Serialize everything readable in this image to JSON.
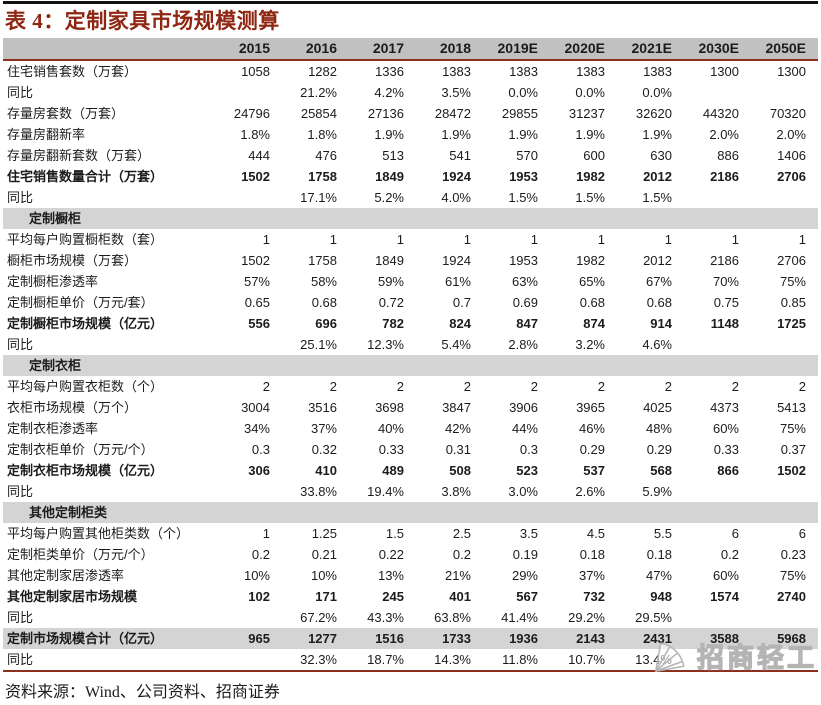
{
  "title": "表 4：定制家具市场规模测算",
  "colors": {
    "accent_maroon": "#8E2612",
    "rule_maroon": "#8E2F1E",
    "top_rule_black": "#111111",
    "header_bg": "#C1C1C1",
    "band_bg": "#D4D4D4",
    "watermark_gray": "#B4B4B4"
  },
  "table": {
    "columns": [
      "2015",
      "2016",
      "2017",
      "2018",
      "2019E",
      "2020E",
      "2021E",
      "2030E",
      "2050E"
    ],
    "rows": [
      {
        "label": "住宅销售套数（万套）",
        "style": "normal",
        "values": [
          "1058",
          "1282",
          "1336",
          "1383",
          "1383",
          "1383",
          "1383",
          "1300",
          "1300"
        ]
      },
      {
        "label": "同比",
        "style": "normal",
        "values": [
          "",
          "21.2%",
          "4.2%",
          "3.5%",
          "0.0%",
          "0.0%",
          "0.0%",
          "",
          ""
        ]
      },
      {
        "label": "存量房套数（万套）",
        "style": "normal",
        "values": [
          "24796",
          "25854",
          "27136",
          "28472",
          "29855",
          "31237",
          "32620",
          "44320",
          "70320"
        ]
      },
      {
        "label": "存量房翻新率",
        "style": "normal",
        "values": [
          "1.8%",
          "1.8%",
          "1.9%",
          "1.9%",
          "1.9%",
          "1.9%",
          "1.9%",
          "2.0%",
          "2.0%"
        ]
      },
      {
        "label": "存量房翻新套数（万套）",
        "style": "normal",
        "values": [
          "444",
          "476",
          "513",
          "541",
          "570",
          "600",
          "630",
          "886",
          "1406"
        ]
      },
      {
        "label": "住宅销售数量合计（万套）",
        "style": "bold",
        "values": [
          "1502",
          "1758",
          "1849",
          "1924",
          "1953",
          "1982",
          "2012",
          "2186",
          "2706"
        ]
      },
      {
        "label": "同比",
        "style": "normal",
        "values": [
          "",
          "17.1%",
          "5.2%",
          "4.0%",
          "1.5%",
          "1.5%",
          "1.5%",
          "",
          ""
        ]
      },
      {
        "label": "定制橱柜",
        "style": "section",
        "values": [
          "",
          "",
          "",
          "",
          "",
          "",
          "",
          "",
          ""
        ]
      },
      {
        "label": "平均每户购置橱柜数（套）",
        "style": "normal",
        "values": [
          "1",
          "1",
          "1",
          "1",
          "1",
          "1",
          "1",
          "1",
          "1"
        ]
      },
      {
        "label": "橱柜市场规模（万套）",
        "style": "normal",
        "values": [
          "1502",
          "1758",
          "1849",
          "1924",
          "1953",
          "1982",
          "2012",
          "2186",
          "2706"
        ]
      },
      {
        "label": "定制橱柜渗透率",
        "style": "normal",
        "values": [
          "57%",
          "58%",
          "59%",
          "61%",
          "63%",
          "65%",
          "67%",
          "70%",
          "75%"
        ]
      },
      {
        "label": "定制橱柜单价（万元/套）",
        "style": "normal",
        "values": [
          "0.65",
          "0.68",
          "0.72",
          "0.7",
          "0.69",
          "0.68",
          "0.68",
          "0.75",
          "0.85"
        ]
      },
      {
        "label": "定制橱柜市场规模（亿元）",
        "style": "bold",
        "values": [
          "556",
          "696",
          "782",
          "824",
          "847",
          "874",
          "914",
          "1148",
          "1725"
        ]
      },
      {
        "label": "同比",
        "style": "normal",
        "values": [
          "",
          "25.1%",
          "12.3%",
          "5.4%",
          "2.8%",
          "3.2%",
          "4.6%",
          "",
          ""
        ]
      },
      {
        "label": "定制衣柜",
        "style": "section",
        "values": [
          "",
          "",
          "",
          "",
          "",
          "",
          "",
          "",
          ""
        ]
      },
      {
        "label": "平均每户购置衣柜数（个）",
        "style": "normal",
        "values": [
          "2",
          "2",
          "2",
          "2",
          "2",
          "2",
          "2",
          "2",
          "2"
        ]
      },
      {
        "label": "衣柜市场规模（万个）",
        "style": "normal",
        "values": [
          "3004",
          "3516",
          "3698",
          "3847",
          "3906",
          "3965",
          "4025",
          "4373",
          "5413"
        ]
      },
      {
        "label": "定制衣柜渗透率",
        "style": "normal",
        "values": [
          "34%",
          "37%",
          "40%",
          "42%",
          "44%",
          "46%",
          "48%",
          "60%",
          "75%"
        ]
      },
      {
        "label": "定制衣柜单价（万元/个）",
        "style": "normal",
        "values": [
          "0.3",
          "0.32",
          "0.33",
          "0.31",
          "0.3",
          "0.29",
          "0.29",
          "0.33",
          "0.37"
        ]
      },
      {
        "label": "定制衣柜市场规模（亿元）",
        "style": "bold",
        "values": [
          "306",
          "410",
          "489",
          "508",
          "523",
          "537",
          "568",
          "866",
          "1502"
        ]
      },
      {
        "label": "同比",
        "style": "normal",
        "values": [
          "",
          "33.8%",
          "19.4%",
          "3.8%",
          "3.0%",
          "2.6%",
          "5.9%",
          "",
          ""
        ]
      },
      {
        "label": "其他定制柜类",
        "style": "section",
        "values": [
          "",
          "",
          "",
          "",
          "",
          "",
          "",
          "",
          ""
        ]
      },
      {
        "label": "平均每户购置其他柜类数（个）",
        "style": "normal",
        "values": [
          "1",
          "1.25",
          "1.5",
          "2.5",
          "3.5",
          "4.5",
          "5.5",
          "6",
          "6"
        ]
      },
      {
        "label": "定制柜类单价（万元/个）",
        "style": "normal",
        "values": [
          "0.2",
          "0.21",
          "0.22",
          "0.2",
          "0.19",
          "0.18",
          "0.18",
          "0.2",
          "0.23"
        ]
      },
      {
        "label": "其他定制家居渗透率",
        "style": "normal",
        "values": [
          "10%",
          "10%",
          "13%",
          "21%",
          "29%",
          "37%",
          "47%",
          "60%",
          "75%"
        ]
      },
      {
        "label": "其他定制家居市场规模",
        "style": "bold",
        "values": [
          "102",
          "171",
          "245",
          "401",
          "567",
          "732",
          "948",
          "1574",
          "2740"
        ]
      },
      {
        "label": "同比",
        "style": "normal",
        "values": [
          "",
          "67.2%",
          "43.3%",
          "63.8%",
          "41.4%",
          "29.2%",
          "29.5%",
          "",
          ""
        ]
      },
      {
        "label": "定制市场规模合计（亿元）",
        "style": "total",
        "values": [
          "965",
          "1277",
          "1516",
          "1733",
          "1936",
          "2143",
          "2431",
          "3588",
          "5968"
        ]
      },
      {
        "label": "同比",
        "style": "normal",
        "values": [
          "",
          "32.3%",
          "18.7%",
          "14.3%",
          "11.8%",
          "10.7%",
          "13.4%",
          "",
          ""
        ]
      }
    ]
  },
  "source_line": "资料来源：Wind、公司资料、招商证券",
  "watermark": {
    "icon": "fan-logo",
    "text": "招商轻工"
  }
}
